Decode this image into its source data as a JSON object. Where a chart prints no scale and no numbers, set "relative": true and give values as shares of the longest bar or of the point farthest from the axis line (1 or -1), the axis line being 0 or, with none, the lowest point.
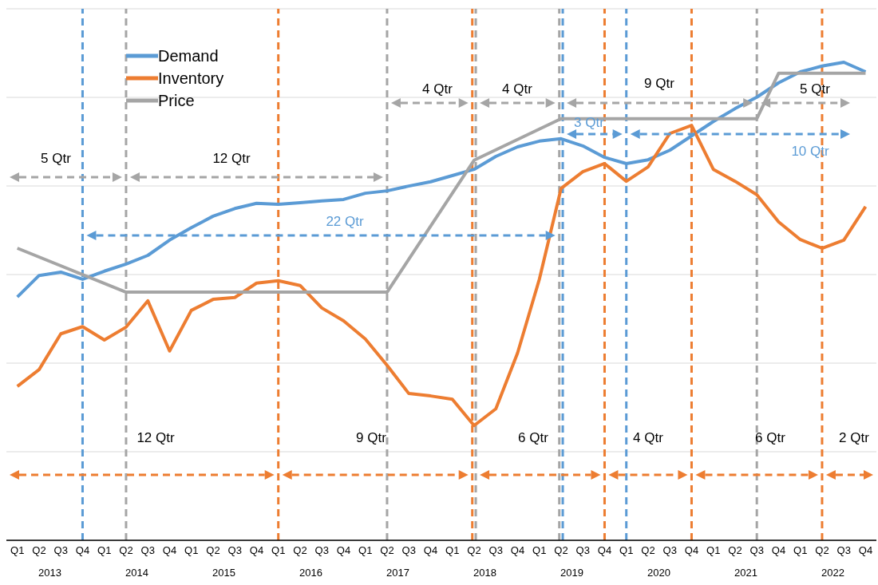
{
  "chart_data": {
    "type": "line",
    "relative": true,
    "x": [
      "2013-01",
      "2013-04",
      "2013-07",
      "2013-10",
      "2014-01",
      "2014-04",
      "2014-07",
      "2014-10",
      "2015-01",
      "2015-04",
      "2015-07",
      "2015-10",
      "2016-01",
      "2016-04",
      "2016-07",
      "2016-10",
      "2017-01",
      "2017-04",
      "2017-07",
      "2017-10",
      "2018-01",
      "2018-04",
      "2018-07",
      "2018-10",
      "2019-01",
      "2019-04",
      "2019-07",
      "2019-10",
      "2020-01",
      "2020-04",
      "2020-07",
      "2020-10",
      "2021-01",
      "2021-04",
      "2021-07",
      "2021-10",
      "2022-01",
      "2022-04",
      "2022-07",
      "2022-10"
    ],
    "xlim": [
      "2012-11-16",
      "2022-11-16"
    ],
    "xticks": [
      {
        "value": "2013-01",
        "label": "Q1"
      },
      {
        "value": "2013-04",
        "label": "Q2"
      },
      {
        "value": "2013-07",
        "label": "Q3"
      },
      {
        "value": "2013-10",
        "label": "Q4"
      },
      {
        "value": "2014-01",
        "label": "Q1"
      },
      {
        "value": "2014-04",
        "label": "Q2"
      },
      {
        "value": "2014-07",
        "label": "Q3"
      },
      {
        "value": "2014-10",
        "label": "Q4"
      },
      {
        "value": "2015-01",
        "label": "Q1"
      },
      {
        "value": "2015-04",
        "label": "Q2"
      },
      {
        "value": "2015-07",
        "label": "Q3"
      },
      {
        "value": "2015-10",
        "label": "Q4"
      },
      {
        "value": "2016-01",
        "label": "Q1"
      },
      {
        "value": "2016-04",
        "label": "Q2"
      },
      {
        "value": "2016-07",
        "label": "Q3"
      },
      {
        "value": "2016-10",
        "label": "Q4"
      },
      {
        "value": "2017-01",
        "label": "Q1"
      },
      {
        "value": "2017-04",
        "label": "Q2"
      },
      {
        "value": "2017-07",
        "label": "Q3"
      },
      {
        "value": "2017-10",
        "label": "Q4"
      },
      {
        "value": "2018-01",
        "label": "Q1"
      },
      {
        "value": "2018-04",
        "label": "Q2"
      },
      {
        "value": "2018-07",
        "label": "Q3"
      },
      {
        "value": "2018-10",
        "label": "Q4"
      },
      {
        "value": "2019-01",
        "label": "Q1"
      },
      {
        "value": "2019-04",
        "label": "Q2"
      },
      {
        "value": "2019-07",
        "label": "Q3"
      },
      {
        "value": "2019-10",
        "label": "Q4"
      },
      {
        "value": "2020-01",
        "label": "Q1"
      },
      {
        "value": "2020-04",
        "label": "Q2"
      },
      {
        "value": "2020-07",
        "label": "Q3"
      },
      {
        "value": "2020-10",
        "label": "Q4"
      },
      {
        "value": "2021-01",
        "label": "Q1"
      },
      {
        "value": "2021-04",
        "label": "Q2"
      },
      {
        "value": "2021-07",
        "label": "Q3"
      },
      {
        "value": "2021-10",
        "label": "Q4"
      },
      {
        "value": "2022-01",
        "label": "Q1"
      },
      {
        "value": "2022-04",
        "label": "Q2"
      },
      {
        "value": "2022-07",
        "label": "Q3"
      },
      {
        "value": "2022-10",
        "label": "Q4"
      }
    ],
    "x2lim": [
      "2012-11-16",
      "2022-11-16"
    ],
    "x2ticks": [
      {
        "value": "2013-05-16",
        "label": "2013"
      },
      {
        "value": "2014-05-16",
        "label": "2014"
      },
      {
        "value": "2015-05-16",
        "label": "2015"
      },
      {
        "value": "2016-05-16",
        "label": "2016"
      },
      {
        "value": "2017-05-16",
        "label": "2017"
      },
      {
        "value": "2018-05-16",
        "label": "2018"
      },
      {
        "value": "2019-05-16",
        "label": "2019"
      },
      {
        "value": "2020-05-16",
        "label": "2020"
      },
      {
        "value": "2021-05-16",
        "label": "2021"
      },
      {
        "value": "2022-05-16",
        "label": "2022"
      }
    ],
    "series": [
      {
        "name": "Demand",
        "color": "#5b9bd5",
        "values": [
          0.509,
          0.554,
          0.561,
          0.546,
          0.563,
          0.578,
          0.596,
          0.628,
          0.654,
          0.678,
          0.694,
          0.705,
          0.703,
          0.706,
          0.71,
          0.713,
          0.726,
          0.731,
          0.741,
          0.75,
          0.763,
          0.776,
          0.803,
          0.823,
          0.835,
          0.84,
          0.825,
          0.801,
          0.788,
          0.796,
          0.816,
          0.846,
          0.876,
          0.903,
          0.927,
          0.957,
          0.98,
          0.992,
          1.0,
          0.98
        ]
      },
      {
        "name": "Inventory",
        "color": "#ed7d31",
        "values": [
          0.322,
          0.357,
          0.432,
          0.447,
          0.419,
          0.446,
          0.501,
          0.396,
          0.481,
          0.504,
          0.508,
          0.538,
          0.543,
          0.533,
          0.486,
          0.459,
          0.421,
          0.366,
          0.307,
          0.302,
          0.295,
          0.24,
          0.275,
          0.392,
          0.546,
          0.736,
          0.771,
          0.788,
          0.751,
          0.781,
          0.851,
          0.868,
          0.776,
          0.751,
          0.723,
          0.666,
          0.629,
          0.611,
          0.628,
          0.698
        ]
      },
      {
        "name": "Price",
        "color": "#a5a5a5",
        "x": [
          "2013-01",
          "2014-04",
          "2017-04",
          "2018-04",
          "2019-04",
          "2021-07",
          "2021-10",
          "2022-10"
        ],
        "values": [
          0.611,
          0.519,
          0.519,
          0.795,
          0.882,
          0.882,
          0.977,
          0.977
        ]
      }
    ],
    "ref_lines": [
      {
        "axis": "x",
        "value": "2013-10",
        "color": "#5b9bd5",
        "line_style": "dashed"
      },
      {
        "axis": "x",
        "value": "2014-04",
        "color": "#a5a5a5",
        "line_style": "dashed"
      },
      {
        "axis": "x",
        "value": "2016-01",
        "color": "#ed7d31",
        "line_style": "dashed"
      },
      {
        "axis": "x",
        "value": "2017-04",
        "color": "#a5a5a5",
        "line_style": "dashed"
      },
      {
        "axis": "x",
        "value": "2018-03-24",
        "color": "#ed7d31",
        "line_style": "dashed"
      },
      {
        "axis": "x",
        "value": "2018-04-08",
        "color": "#a5a5a5",
        "line_style": "dashed"
      },
      {
        "axis": "x",
        "value": "2019-03-24",
        "color": "#a5a5a5",
        "line_style": "dashed"
      },
      {
        "axis": "x",
        "value": "2019-04-08",
        "color": "#5b9bd5",
        "line_style": "dashed"
      },
      {
        "axis": "x",
        "value": "2019-10",
        "color": "#ed7d31",
        "line_style": "dashed"
      },
      {
        "axis": "x",
        "value": "2020-01",
        "color": "#5b9bd5",
        "line_style": "dashed"
      },
      {
        "axis": "x",
        "value": "2020-10",
        "color": "#ed7d31",
        "line_style": "dashed"
      },
      {
        "axis": "x",
        "value": "2021-07",
        "color": "#a5a5a5",
        "line_style": "dashed"
      },
      {
        "axis": "x",
        "value": "2022-04",
        "color": "#ed7d31",
        "line_style": "dashed"
      }
    ],
    "annotations": [
      "5 Qtr",
      "12 Qtr",
      "4 Qtr",
      "4 Qtr",
      "9 Qtr",
      "5 Qtr",
      "22 Qtr",
      "3 Qtr",
      "10 Qtr",
      "12 Qtr",
      "9 Qtr",
      "6 Qtr",
      "4 Qtr",
      "6 Qtr",
      "2 Qtr"
    ],
    "grid": "y",
    "legend": "top left",
    "marker": "none",
    "line_style": "solid"
  }
}
